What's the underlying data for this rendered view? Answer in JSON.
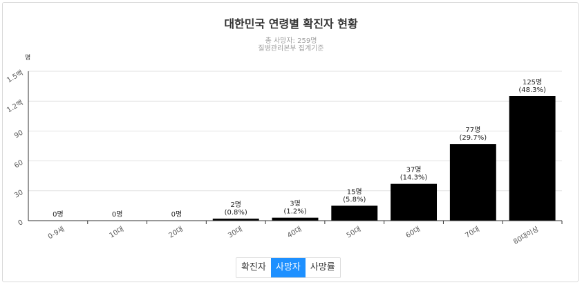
{
  "chart": {
    "title": "대한민국 연령별 확진자 현황",
    "subtitle_line1": "총 사망자: 259명",
    "subtitle_line2": "질병관리본부 집계기준",
    "y_unit": "명",
    "y_tick_labels": [
      "0",
      "30",
      "60",
      "90",
      "1.2백",
      "1.5백"
    ]
  },
  "chart_data": {
    "type": "bar",
    "title": "대한민국 연령별 확진자 현황",
    "subtitle": "총 사망자: 259명 / 질병관리본부 집계기준",
    "ylabel": "명",
    "ylim": [
      0,
      150
    ],
    "y_ticks": [
      0,
      30,
      60,
      90,
      120,
      150
    ],
    "grid": true,
    "categories": [
      "0-9세",
      "10대",
      "20대",
      "30대",
      "40대",
      "50대",
      "60대",
      "70대",
      "80대이상"
    ],
    "values": [
      0,
      0,
      0,
      2,
      3,
      15,
      37,
      77,
      125
    ],
    "count_labels": [
      "0명",
      "0명",
      "0명",
      "2명",
      "3명",
      "15명",
      "37명",
      "77명",
      "125명"
    ],
    "percent_labels": [
      "",
      "",
      "",
      "(0.8%)",
      "(1.2%)",
      "(5.8%)",
      "(14.3%)",
      "(29.7%)",
      "(48.3%)"
    ],
    "bar_color": "#000000"
  },
  "tabs": [
    {
      "label": "확진자",
      "active": false
    },
    {
      "label": "사망자",
      "active": true
    },
    {
      "label": "사망률",
      "active": false
    }
  ]
}
